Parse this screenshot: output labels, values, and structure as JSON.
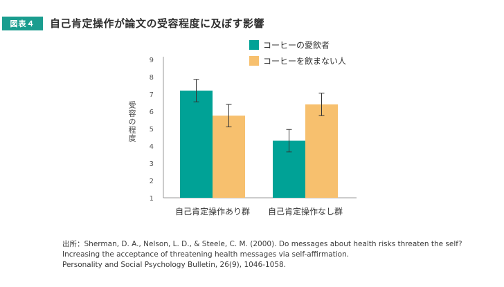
{
  "figure": {
    "badge": "図表４",
    "title": "自己肯定操作が論文の受容程度に及ぼす影響"
  },
  "source": {
    "lines": [
      "出所：Sherman, D. A., Nelson, L. D., & Steele, C. M. (2000). Do messages about health risks threaten the self?",
      " Increasing the acceptance of threatening health messages via self-affirmation.",
      "Personality and Social Psychology Bulletin, 26(9), 1046-1058."
    ]
  },
  "colors": {
    "series1": "#00a296",
    "series2": "#f7c06e",
    "axis": "#999999",
    "error": "#333333"
  },
  "chart_data": {
    "type": "bar",
    "title": "自己肯定操作が論文の受容程度に及ぼす影響",
    "xlabel": "",
    "ylabel": "受容の程度",
    "categories": [
      "自己肯定操作あり群",
      "自己肯定操作なし群"
    ],
    "ylim": [
      1,
      9
    ],
    "yticks": [
      1,
      2,
      3,
      4,
      5,
      6,
      7,
      8,
      9
    ],
    "grid": false,
    "legend": "top-right",
    "series": [
      {
        "name": "コーヒーの愛飲者",
        "values": [
          7.2,
          4.3
        ],
        "error": [
          0.65,
          0.65
        ],
        "color": "#00a296"
      },
      {
        "name": "コーヒーを飲まない人",
        "values": [
          5.75,
          6.4
        ],
        "error": [
          0.65,
          0.65
        ],
        "color": "#f7c06e"
      }
    ]
  }
}
